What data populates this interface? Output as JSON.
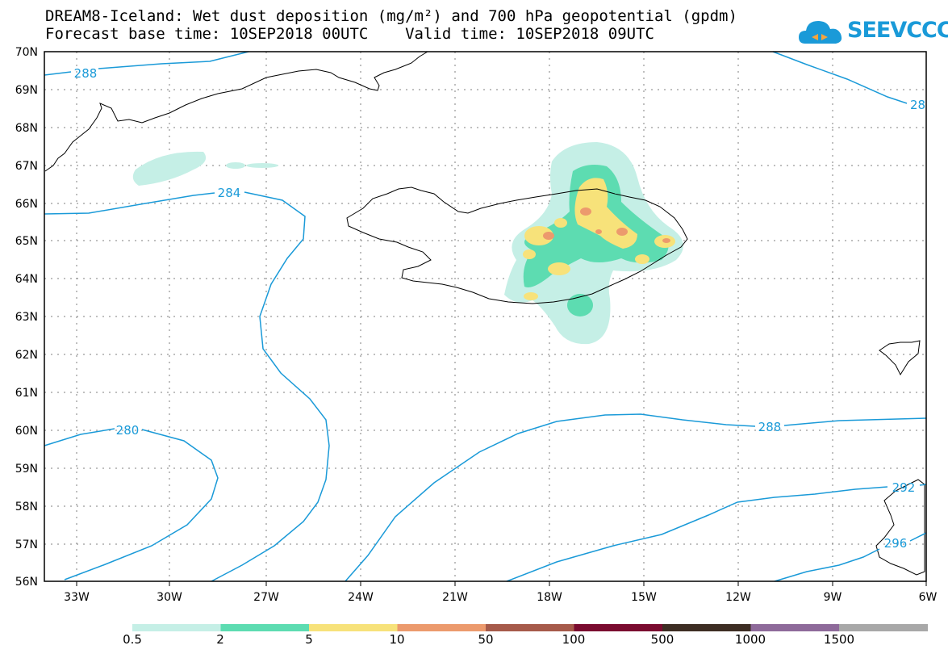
{
  "title": {
    "line1": "DREAM8-Iceland: Wet dust deposition (mg/m²) and 700 hPa geopotential (gpdm)",
    "line2": "Forecast base time: 10SEP2018 00UTC    Valid time: 10SEP2018 09UTC"
  },
  "logo": {
    "text": "SEEVCCC",
    "icon": "cloud-icon"
  },
  "map": {
    "lat_labels": [
      "70N",
      "69N",
      "68N",
      "67N",
      "66N",
      "65N",
      "64N",
      "63N",
      "62N",
      "61N",
      "60N",
      "59N",
      "58N",
      "57N",
      "56N"
    ],
    "lon_labels": [
      "33W",
      "30W",
      "27W",
      "24W",
      "21W",
      "18W",
      "15W",
      "12W",
      "9W",
      "6W"
    ],
    "contour_labels": [
      "288",
      "284",
      "280",
      "288",
      "292",
      "296",
      "28"
    ],
    "colors": {
      "contour": "#1a9ad8",
      "coast": "#000000",
      "grid": "#7f7f7f"
    }
  },
  "legend": {
    "labels": [
      "0.5",
      "2",
      "5",
      "10",
      "50",
      "100",
      "500",
      "1000",
      "1500"
    ],
    "colors": [
      "#c5efe6",
      "#5ddcb1",
      "#f7e27a",
      "#ec9a6d",
      "#a65a4a",
      "#7a0b2f",
      "#3d2d23",
      "#8e6a9a",
      "#a8a8a8"
    ]
  }
}
